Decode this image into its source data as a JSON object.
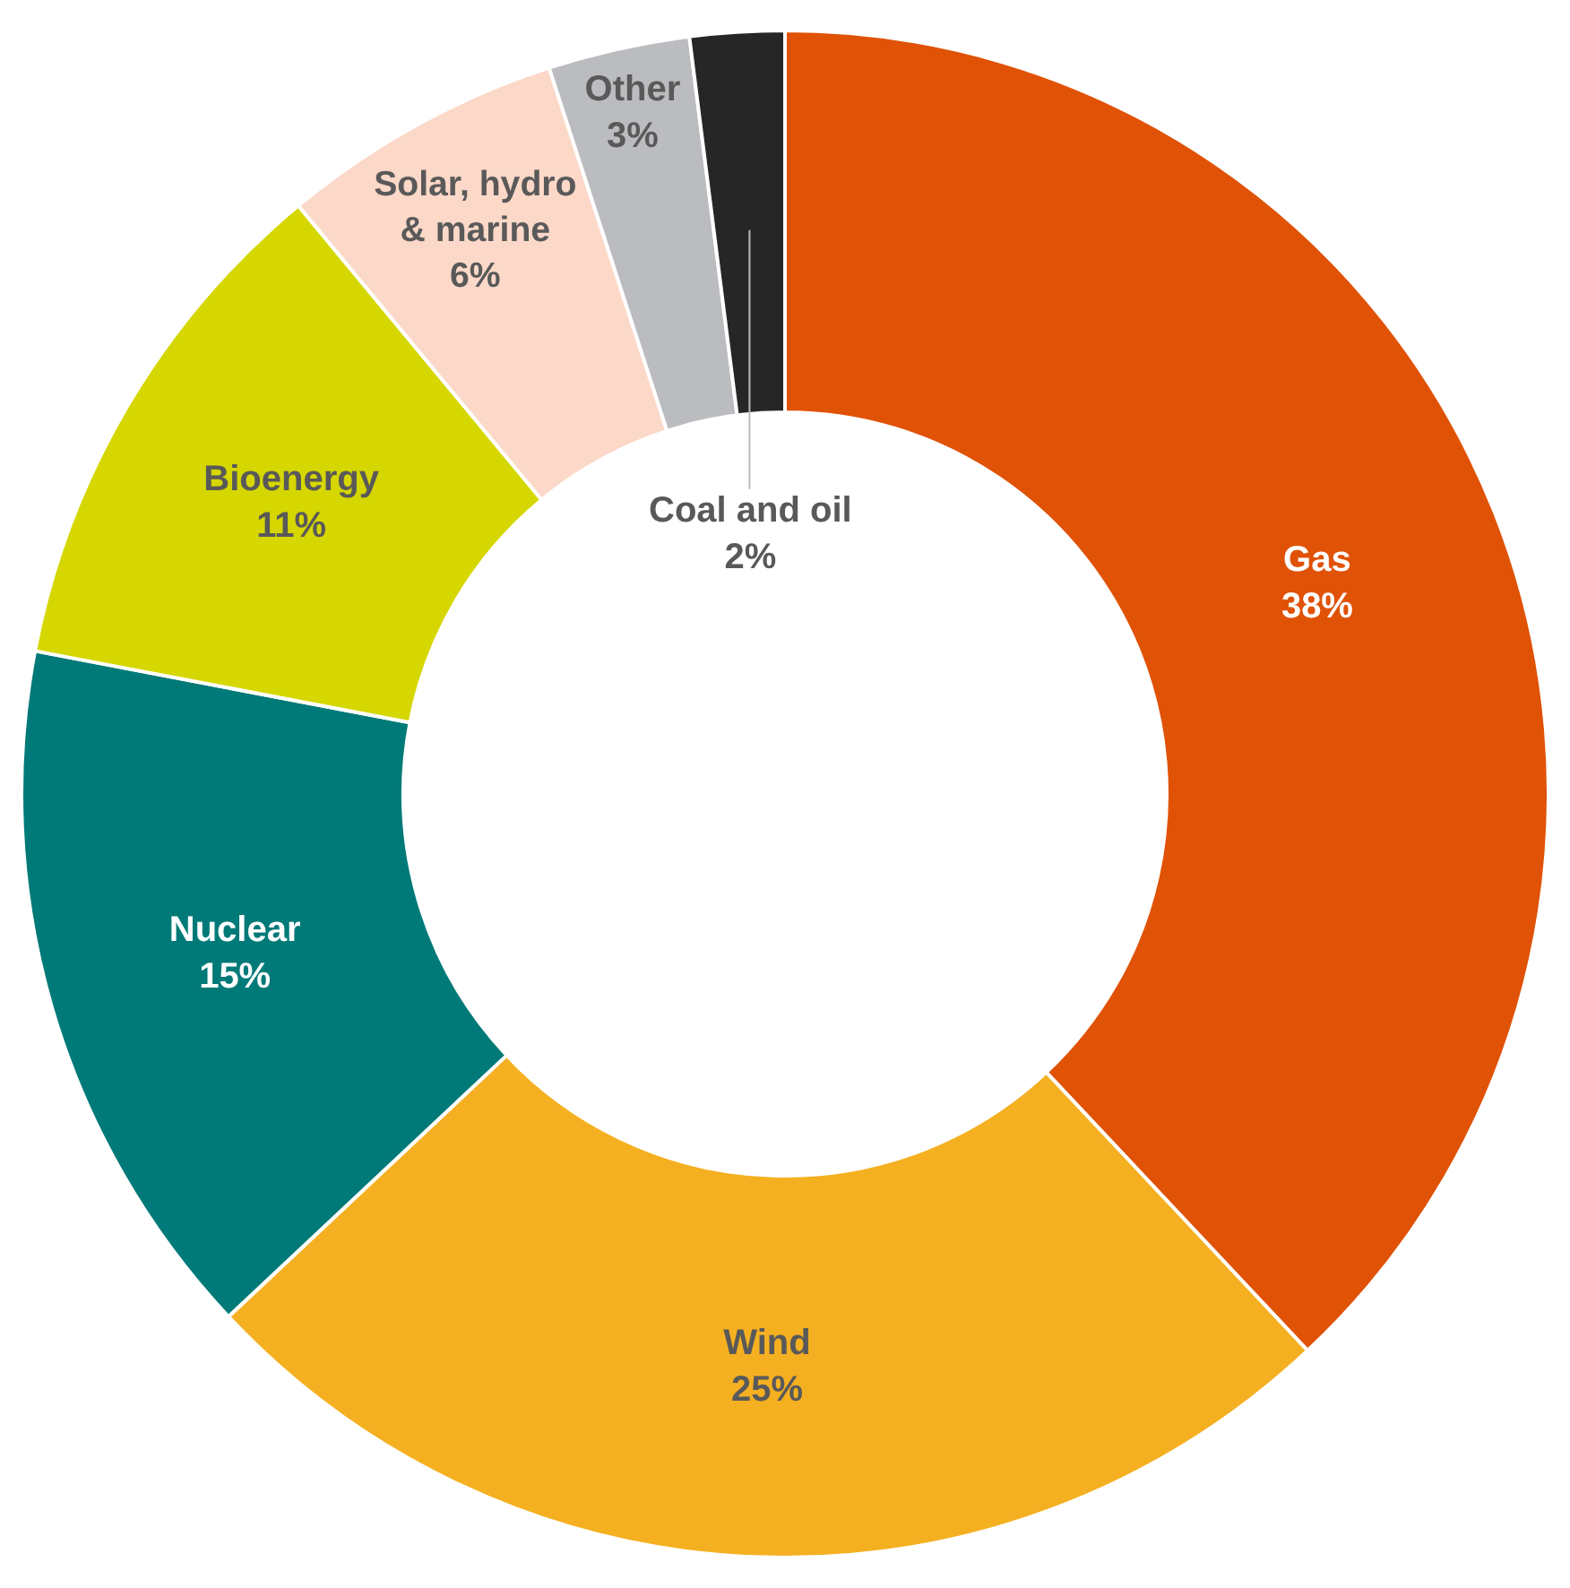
{
  "chart_data": {
    "type": "donut",
    "categories": [
      "Gas",
      "Wind",
      "Nuclear",
      "Bioenergy",
      "Solar, hydro & marine",
      "Other",
      "Coal and oil"
    ],
    "values": [
      38,
      25,
      15,
      11,
      6,
      3,
      2
    ],
    "colors": [
      "#e05206",
      "#f5b021",
      "#007a78",
      "#d6d600",
      "#fcd8c8",
      "#bbbcbf",
      "#262626"
    ],
    "value_labels": [
      "38%",
      "25%",
      "15%",
      "11%",
      "6%",
      "3%",
      "2%"
    ],
    "legend": false
  }
}
